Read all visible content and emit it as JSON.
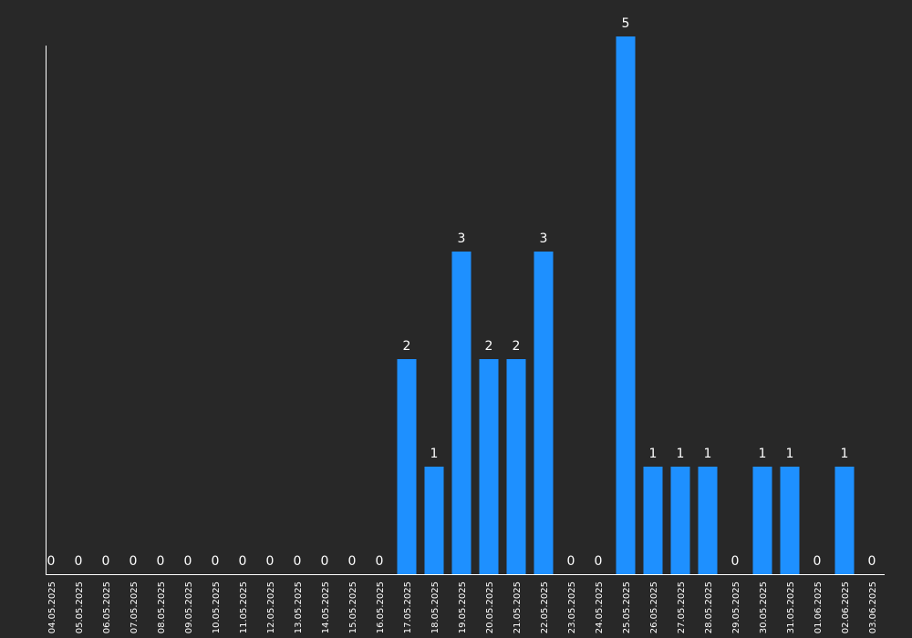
{
  "chart_data": {
    "type": "bar",
    "categories": [
      "04.05.2025",
      "05.05.2025",
      "06.05.2025",
      "07.05.2025",
      "08.05.2025",
      "09.05.2025",
      "10.05.2025",
      "11.05.2025",
      "12.05.2025",
      "13.05.2025",
      "14.05.2025",
      "15.05.2025",
      "16.05.2025",
      "17.05.2025",
      "18.05.2025",
      "19.05.2025",
      "20.05.2025",
      "21.05.2025",
      "22.05.2025",
      "23.05.2025",
      "24.05.2025",
      "25.05.2025",
      "26.05.2025",
      "27.05.2025",
      "28.05.2025",
      "29.05.2025",
      "30.05.2025",
      "31.05.2025",
      "01.06.2025",
      "02.06.2025",
      "03.06.2025"
    ],
    "values": [
      0,
      0,
      0,
      0,
      0,
      0,
      0,
      0,
      0,
      0,
      0,
      0,
      0,
      2,
      1,
      3,
      2,
      2,
      3,
      0,
      0,
      5,
      1,
      1,
      1,
      0,
      1,
      1,
      0,
      1,
      0
    ],
    "title": "",
    "xlabel": "",
    "ylabel": "",
    "ylim": [
      0,
      5
    ],
    "grid": false,
    "legend": "none",
    "colors": {
      "bar": "#1e90ff",
      "background": "#282828",
      "text": "#ffffff",
      "axis": "#ffffff"
    }
  }
}
